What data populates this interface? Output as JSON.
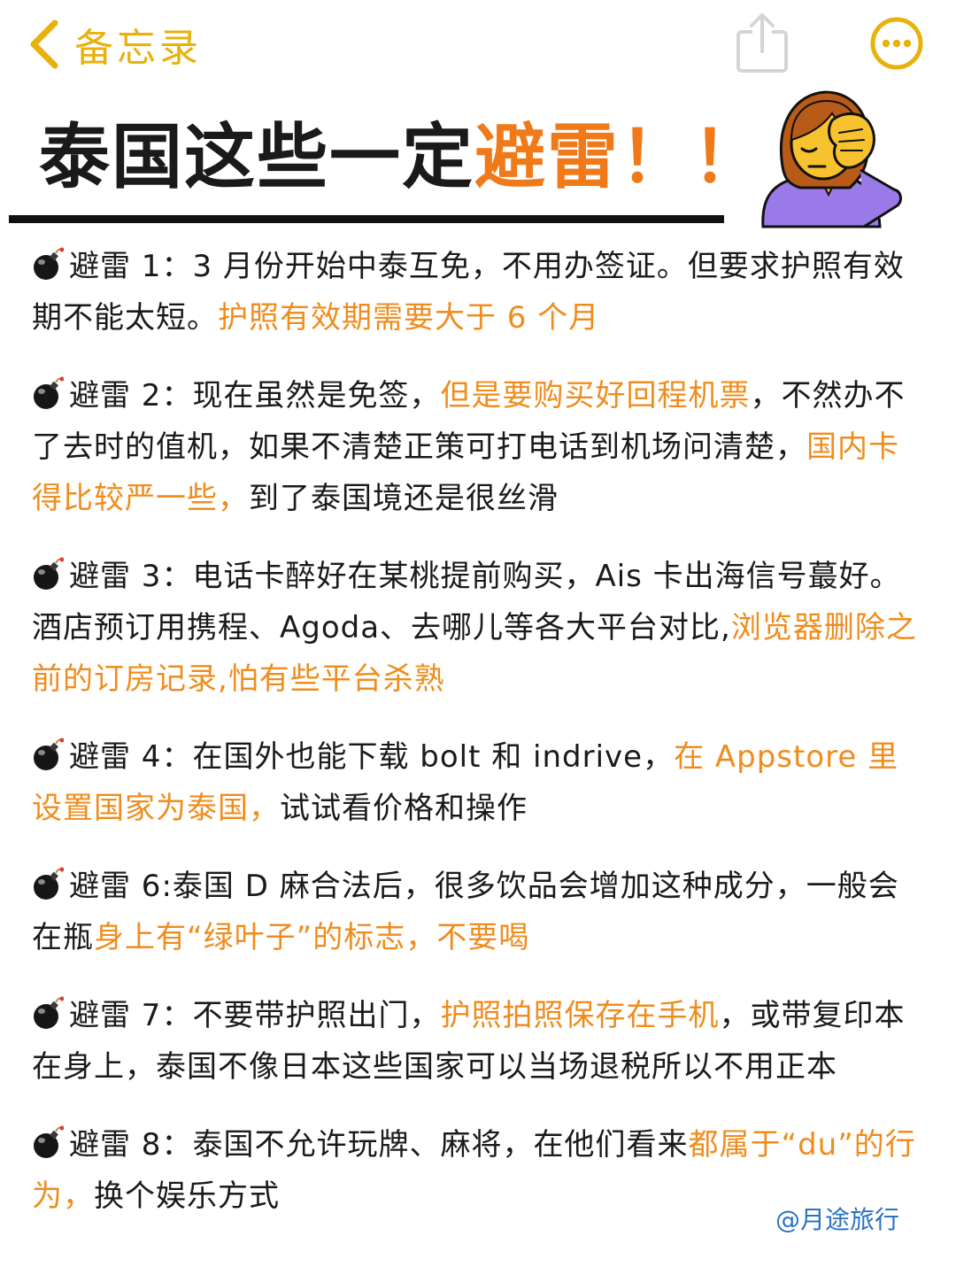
{
  "nav": {
    "back_label": "备忘录",
    "accent": "#e8b10c",
    "icons": [
      "chevron-left-icon",
      "share-icon",
      "more-icon"
    ]
  },
  "title": {
    "part1": "泰国这些一定",
    "part2": "避雷！！",
    "emoji": "facepalm-woman-emoji"
  },
  "colors": {
    "highlight": "#f08c1c",
    "text": "#1a1a1a",
    "handle": "#2a72c4"
  },
  "items": [
    {
      "icon": "bomb-icon",
      "segments": [
        {
          "text": "避雷 1：3 月份开始中泰互免，不用办签证。但要求护照有效期不能太短。",
          "hl": false
        },
        {
          "text": "护照有效期需要大于 6 个月",
          "hl": true
        }
      ]
    },
    {
      "icon": "bomb-icon",
      "segments": [
        {
          "text": "避雷 2：现在虽然是免签，",
          "hl": false
        },
        {
          "text": "但是要购买好回程机票",
          "hl": true
        },
        {
          "text": "，不然办不了去时的值机，如果不清楚正策可打电话到机场问清楚，",
          "hl": false
        },
        {
          "text": "国内卡得比较严一些，",
          "hl": true
        },
        {
          "text": "到了泰国境还是很丝滑",
          "hl": false
        }
      ]
    },
    {
      "icon": "bomb-icon",
      "segments": [
        {
          "text": "避雷 3：电话卡醉好在某桃提前购买，Ais 卡出海信号蕞好。酒店预订用携程、Agoda、去哪儿等各大平台对比,",
          "hl": false
        },
        {
          "text": "浏览器删除之前的订房记录,怕有些平台杀熟",
          "hl": true
        }
      ]
    },
    {
      "icon": "bomb-icon",
      "segments": [
        {
          "text": "避雷 4：在国外也能下载 bolt 和 indrive，",
          "hl": false
        },
        {
          "text": "在 Appstore 里设置国家为泰国，",
          "hl": true
        },
        {
          "text": "试试看价格和操作",
          "hl": false
        }
      ]
    },
    {
      "icon": "bomb-icon",
      "segments": [
        {
          "text": "避雷 6:泰国 D 麻合法后，很多饮品会增加这种成分，一般会在瓶",
          "hl": false
        },
        {
          "text": "身上有“绿叶子”的标志，不要喝",
          "hl": true
        }
      ]
    },
    {
      "icon": "bomb-icon",
      "segments": [
        {
          "text": "避雷 7：不要带护照出门，",
          "hl": false
        },
        {
          "text": "护照拍照保存在手机",
          "hl": true
        },
        {
          "text": "，或带复印本在身上，泰国不像日本这些国家可以当场退税所以不用正本",
          "hl": false
        }
      ]
    },
    {
      "icon": "bomb-icon",
      "segments": [
        {
          "text": "避雷 8：泰国不允许玩牌、麻将，在他们看来",
          "hl": false
        },
        {
          "text": "都属于“du”的行为，",
          "hl": true
        },
        {
          "text": "换个娱乐方式",
          "hl": false
        }
      ]
    }
  ],
  "footer": {
    "handle": "@月途旅行"
  }
}
